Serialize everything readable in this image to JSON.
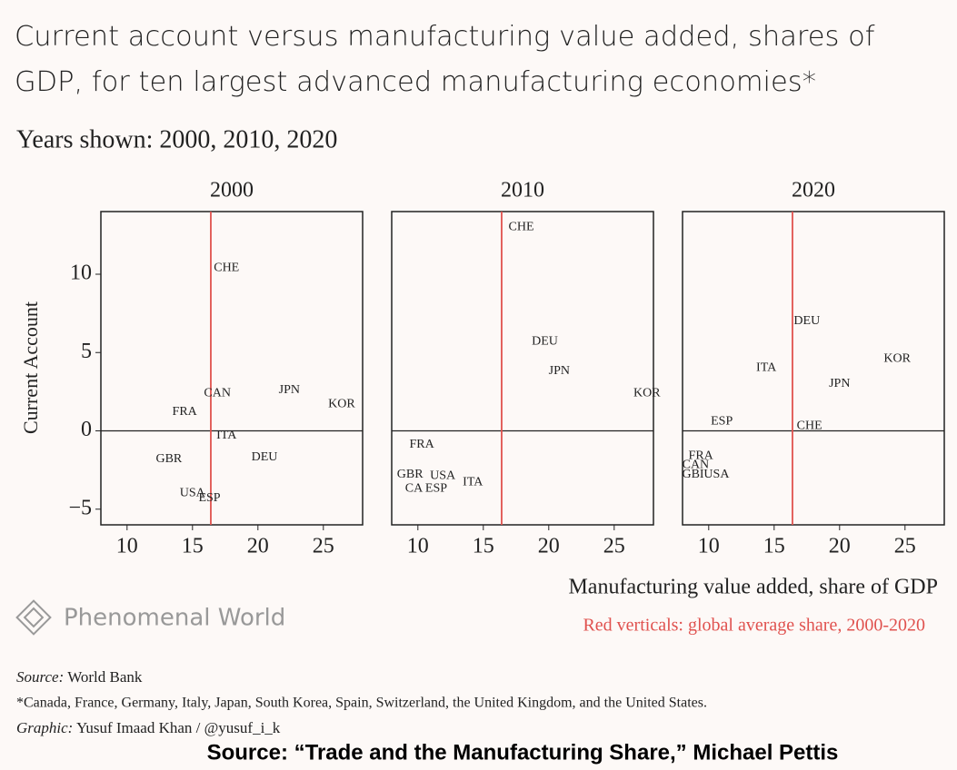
{
  "header": {
    "title": "Current account versus manufacturing value added, shares of GDP, for ten largest advanced manufacturing economies*",
    "subtitle": "Years shown: 2000, 2010, 2020"
  },
  "axes": {
    "x_label": "Manufacturing value added, share of GDP",
    "y_label": "Current Account",
    "note": "Red verticals: global average share, 2000-2020"
  },
  "chart_data": [
    {
      "type": "scatter",
      "title": "2000",
      "xlim": [
        8,
        28
      ],
      "ylim": [
        -6,
        14
      ],
      "xticks": [
        10,
        15,
        20,
        25
      ],
      "yticks": [
        {
          "value": -5,
          "label": "−5"
        },
        0,
        5,
        10
      ],
      "vline": {
        "value": 16.4,
        "color": "#e0524f"
      },
      "hline": 0,
      "labels": [
        "CHE",
        "CAN",
        "JPN",
        "KOR",
        "FRA",
        "ITA",
        "GBR",
        "DEU",
        "USA",
        "ESP"
      ],
      "x": [
        17.6,
        16.9,
        22.4,
        26.4,
        14.4,
        17.6,
        13.2,
        20.5,
        15.0,
        16.3
      ],
      "y": [
        10.4,
        2.4,
        2.6,
        1.7,
        1.2,
        -0.3,
        -1.8,
        -1.7,
        -4.0,
        -4.3
      ]
    },
    {
      "type": "scatter",
      "title": "2010",
      "xlim": [
        8,
        28
      ],
      "ylim": [
        -6,
        14
      ],
      "xticks": [
        10,
        15,
        20,
        25
      ],
      "vline": {
        "value": 16.4,
        "color": "#e0524f"
      },
      "hline": 0,
      "labels": [
        "CHE",
        "DEU",
        "JPN",
        "KOR",
        "FRA",
        "GBR",
        "USA",
        "ITA",
        "CA",
        "ESP"
      ],
      "x": [
        17.9,
        19.7,
        20.8,
        27.5,
        10.3,
        9.4,
        11.9,
        14.2,
        9.7,
        11.4
      ],
      "y": [
        13.0,
        5.7,
        3.8,
        2.4,
        -0.9,
        -2.8,
        -2.9,
        -3.3,
        -3.7,
        -3.7
      ]
    },
    {
      "type": "scatter",
      "title": "2020",
      "xlim": [
        8,
        28
      ],
      "ylim": [
        -6,
        14
      ],
      "xticks": [
        10,
        15,
        20,
        25
      ],
      "vline": {
        "value": 16.4,
        "color": "#e0524f"
      },
      "hline": 0,
      "labels": [
        "DEU",
        "KOR",
        "ITA",
        "JPN",
        "ESP",
        "CHE",
        "FRA",
        "CAN",
        "GBI",
        "USA"
      ],
      "x": [
        17.5,
        24.4,
        14.4,
        20.0,
        11.0,
        17.7,
        9.4,
        9.0,
        8.8,
        10.6
      ],
      "y": [
        7.0,
        4.6,
        4.0,
        3.0,
        0.6,
        0.3,
        -1.6,
        -2.2,
        -2.8,
        -2.8
      ]
    }
  ],
  "brand": "Phenomenal World",
  "footer": {
    "source_label": "Source:",
    "source": "World Bank",
    "footnote": "*Canada, France, Germany, Italy, Japan, South Korea, Spain, Switzerland, the United Kingdom, and the United States.",
    "graphic_label": "Graphic:",
    "graphic": "Yusuf Imaad Khan / @yusuf_i_k",
    "credit": "Source: “Trade and the Manufacturing Share,” Michael Pettis"
  }
}
